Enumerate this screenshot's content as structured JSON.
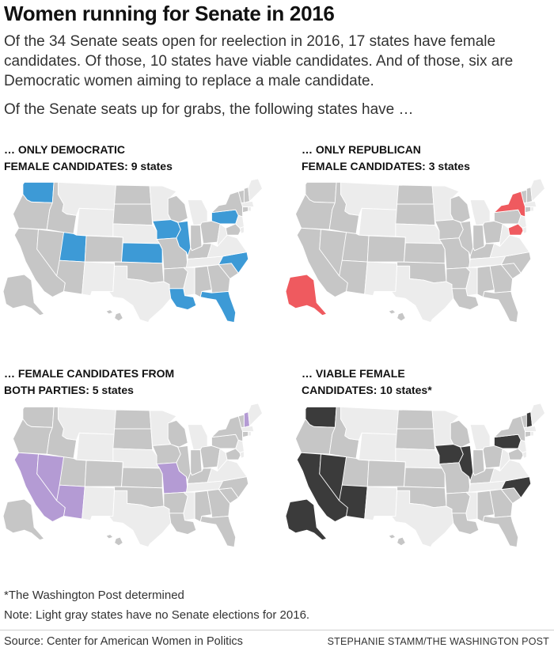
{
  "title": "Women running for Senate in 2016",
  "intro": "Of the 34 Senate seats open for reelection in 2016, 17 states have female candidates. Of those, 10 states have viable candidates. And of those, six are Democratic women aiming to replace a male candidate.",
  "lead": "Of the Senate seats up for grabs, the following states have …",
  "colors": {
    "no_election": "#ececec",
    "election": "#c6c6c6",
    "democratic": "#3d9ad6",
    "republican": "#ef5a5f",
    "both_parties": "#b49bd4",
    "viable": "#3b3b3b",
    "state_border": "#ffffff"
  },
  "panels": [
    {
      "id": "dem",
      "label_line1": "… ONLY DEMOCRATIC",
      "label_line2": "FEMALE CANDIDATES: 9 states",
      "highlight_color_key": "democratic",
      "highlighted_states": [
        "WA",
        "UT",
        "KS",
        "IA",
        "IL",
        "PA",
        "NC",
        "LA",
        "FL"
      ]
    },
    {
      "id": "rep",
      "label_line1": "… ONLY REPUBLICAN",
      "label_line2": "FEMALE CANDIDATES: 3 states",
      "highlight_color_key": "republican",
      "highlighted_states": [
        "NY",
        "MD",
        "AK"
      ]
    },
    {
      "id": "both",
      "label_line1": "… FEMALE CANDIDATES FROM",
      "label_line2": "BOTH PARTIES: 5 states",
      "highlight_color_key": "both_parties",
      "highlighted_states": [
        "CA",
        "NV",
        "AZ",
        "MO",
        "NH"
      ]
    },
    {
      "id": "viable",
      "label_line1": "… VIABLE FEMALE",
      "label_line2": "CANDIDATES: 10 states*",
      "highlight_color_key": "viable",
      "highlighted_states": [
        "WA",
        "CA",
        "NV",
        "AZ",
        "IA",
        "IL",
        "PA",
        "NC",
        "NH",
        "AK"
      ]
    }
  ],
  "election_states": [
    "WA",
    "OR",
    "CA",
    "NV",
    "ID",
    "UT",
    "AZ",
    "CO",
    "ND",
    "SD",
    "KS",
    "OK",
    "IA",
    "MO",
    "AR",
    "LA",
    "WI",
    "IL",
    "IN",
    "KY",
    "AL",
    "GA",
    "FL",
    "SC",
    "NC",
    "OH",
    "PA",
    "NY",
    "MD",
    "CT",
    "VT",
    "NH",
    "AK",
    "HI"
  ],
  "footnote": "*The Washington Post determined",
  "note": "Note: Light gray states have no Senate elections for 2016.",
  "source": "Source: Center for American Women in Politics",
  "credit": "STEPHANIE STAMM/THE WASHINGTON POST"
}
